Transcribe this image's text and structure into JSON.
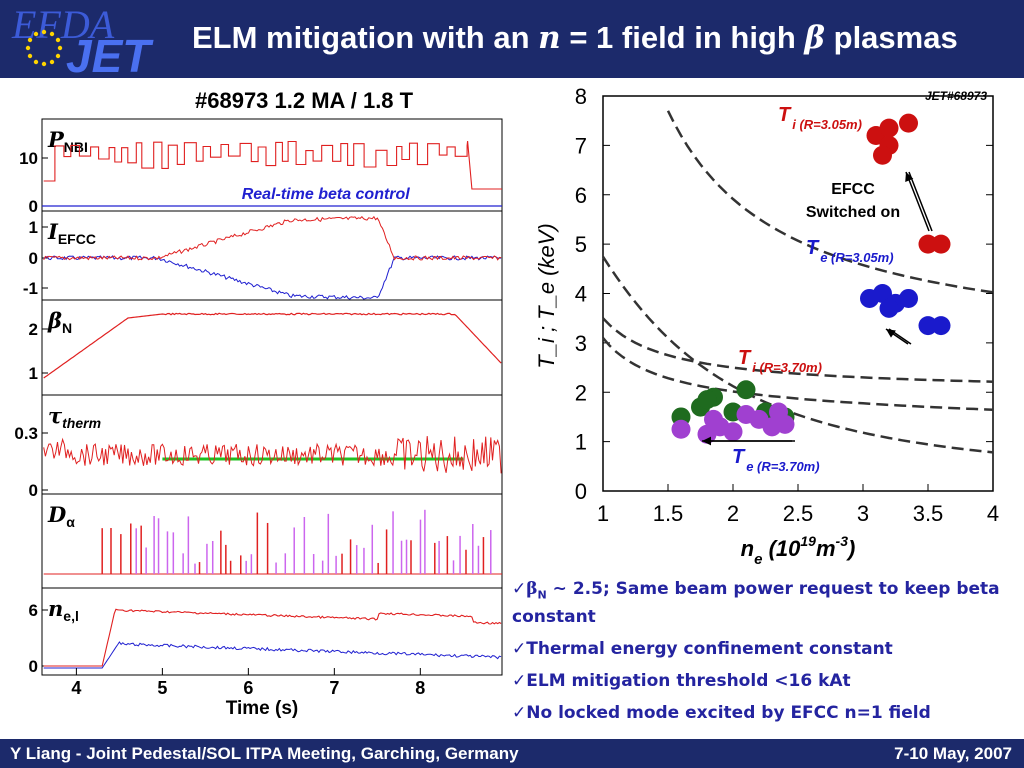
{
  "header": {
    "logo_top": "EFDA",
    "logo_bottom": "JET",
    "title_pre": "ELM mitigation with an ",
    "title_n": "n",
    "title_mid": " = 1 field in high ",
    "title_beta": "β",
    "title_post": " plasmas"
  },
  "timeseries": {
    "title": "#68973 1.2 MA / 1.8 T",
    "x_label": "Time (s)",
    "x_ticks": [
      "4",
      "5",
      "6",
      "7",
      "8"
    ],
    "panels": [
      {
        "label": "P",
        "sub": "NBI",
        "ticks": [
          "10",
          "0"
        ],
        "annotation": "Real-time beta control"
      },
      {
        "label": "I",
        "sub": "EFCC",
        "ticks": [
          "1",
          "0",
          "-1"
        ]
      },
      {
        "label": "β",
        "sub": "N",
        "ticks": [
          "2",
          "1"
        ]
      },
      {
        "label": "τ",
        "sub": "therm",
        "ticks": [
          "0.3",
          "0"
        ]
      },
      {
        "label": "D",
        "sub": "α",
        "ticks": []
      },
      {
        "label": "n",
        "sub": "e,l",
        "ticks": [
          "6",
          "0"
        ]
      }
    ],
    "colors": {
      "red": "#e02020",
      "blue": "#2020d0",
      "green": "#20c020",
      "violet": "#cc66ee",
      "dark": "#1c2a6b"
    }
  },
  "chart_data": {
    "type": "scatter",
    "tag": "JET#68973",
    "xlabel_main": "n",
    "xlabel_sub": "e",
    "xlabel_unit": " (10",
    "xlabel_exp1": "19",
    "xlabel_unit2": "m",
    "xlabel_exp2": "-3",
    "xlabel_close": ")",
    "ylabel": "T_i ; T_e (keV)",
    "xlim": [
      1,
      4
    ],
    "ylim": [
      0,
      8
    ],
    "x_ticks": [
      "1",
      "1.5",
      "2",
      "2.5",
      "3",
      "3.5",
      "4"
    ],
    "y_ticks": [
      "0",
      "1",
      "2",
      "3",
      "4",
      "5",
      "6",
      "7",
      "8"
    ],
    "annotation": "EFCC Switched on",
    "annotation_line1": "EFCC",
    "annotation_line2": "Switched on",
    "series": [
      {
        "name": "T_i (R=3.05m)",
        "label_main": "T",
        "label_sub": "i (R=3.05m)",
        "color": "#cc1010",
        "points": [
          [
            3.1,
            7.2
          ],
          [
            3.2,
            7.35
          ],
          [
            3.35,
            7.45
          ],
          [
            3.2,
            7.0
          ],
          [
            3.15,
            6.8
          ],
          [
            3.5,
            5.0
          ],
          [
            3.6,
            5.0
          ]
        ]
      },
      {
        "name": "T_e (R=3.05m)",
        "label_main": "T",
        "label_sub": "e (R=3.05m)",
        "color": "#1a1acc",
        "points": [
          [
            3.05,
            3.9
          ],
          [
            3.15,
            4.0
          ],
          [
            3.25,
            3.8
          ],
          [
            3.35,
            3.9
          ],
          [
            3.2,
            3.7
          ],
          [
            3.5,
            3.35
          ],
          [
            3.6,
            3.35
          ]
        ]
      },
      {
        "name": "T_i (R=3.70m)",
        "label_main": "T",
        "label_sub": "i (R=3.70m)",
        "color": "#1f6b1f",
        "points": [
          [
            1.6,
            1.5
          ],
          [
            1.75,
            1.7
          ],
          [
            1.85,
            1.9
          ],
          [
            1.8,
            1.85
          ],
          [
            2.1,
            2.05
          ],
          [
            2.25,
            1.6
          ],
          [
            2.4,
            1.5
          ],
          [
            2.0,
            1.6
          ]
        ]
      },
      {
        "name": "T_e (R=3.70m)",
        "label_main": "T",
        "label_sub": "e (R=3.70m)",
        "color": "#a040d0",
        "points": [
          [
            1.6,
            1.25
          ],
          [
            1.8,
            1.15
          ],
          [
            1.9,
            1.3
          ],
          [
            1.85,
            1.45
          ],
          [
            2.1,
            1.55
          ],
          [
            2.2,
            1.45
          ],
          [
            2.3,
            1.3
          ],
          [
            2.4,
            1.35
          ],
          [
            2.35,
            1.6
          ],
          [
            2.0,
            1.2
          ]
        ]
      }
    ]
  },
  "notes": [
    {
      "pre": "✓",
      "beta": "β",
      "sub": "N",
      "text": " ~ 2.5; Same beam power request to keep beta constant"
    },
    {
      "pre": "✓",
      "text": "Thermal energy confinement constant"
    },
    {
      "pre": "✓",
      "text": "ELM mitigation threshold <16 kAt"
    },
    {
      "pre": "✓",
      "text": "No locked mode excited by EFCC n=1 field"
    }
  ],
  "footer": {
    "left": "Y Liang - Joint Pedestal/SOL ITPA Meeting, Garching, Germany",
    "right": "7-10 May, 2007"
  }
}
